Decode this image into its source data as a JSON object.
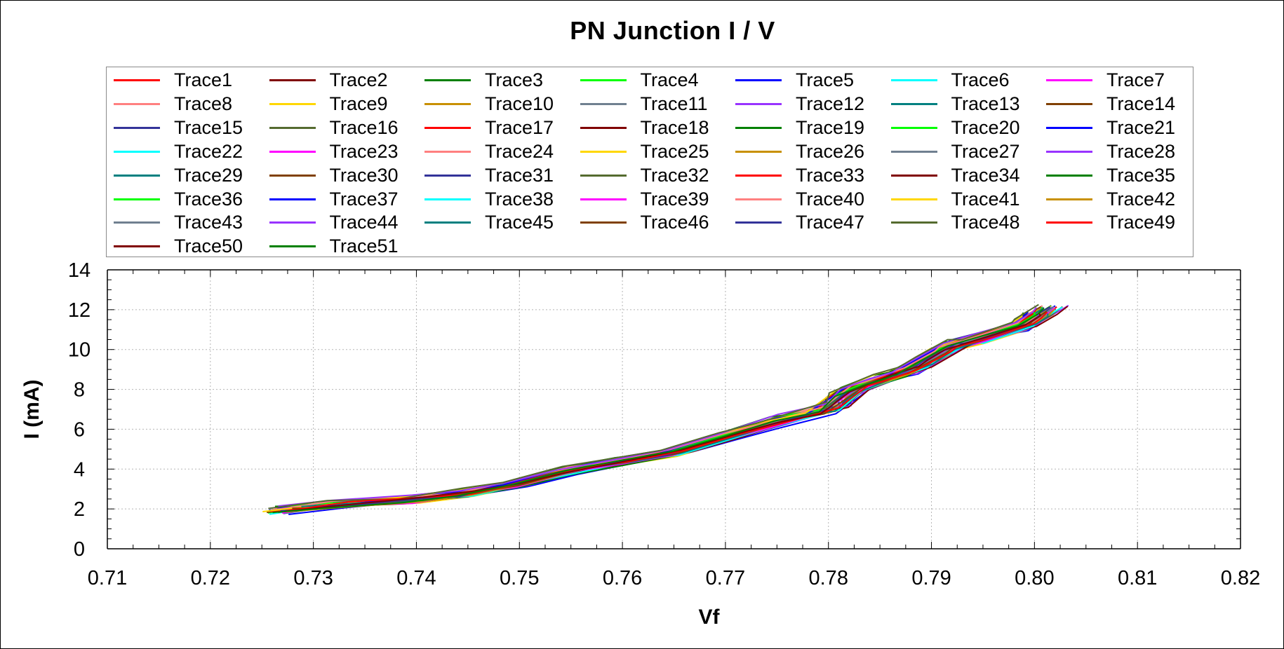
{
  "chart_data": {
    "type": "line",
    "title": "PN Junction I / V",
    "xlabel": "Vf",
    "ylabel": "I (mA)",
    "xlim": [
      0.71,
      0.82
    ],
    "ylim": [
      0,
      14
    ],
    "grid": true,
    "legend_placement": "top",
    "x_ticks": [
      "0.71",
      "0.72",
      "0.73",
      "0.74",
      "0.75",
      "0.76",
      "0.77",
      "0.78",
      "0.79",
      "0.80",
      "0.81",
      "0.82"
    ],
    "y_ticks": [
      "0",
      "2",
      "4",
      "6",
      "8",
      "10",
      "12",
      "14"
    ],
    "series_colors": [
      "#ff0000",
      "#800000",
      "#008000",
      "#00ff00",
      "#0000ff",
      "#00ffff",
      "#ff00ff",
      "#ff8080",
      "#ffd700",
      "#c89000",
      "#708090",
      "#9933ff",
      "#008080",
      "#804000",
      "#333399",
      "#556b2f"
    ],
    "base_curve": {
      "x": [
        0.727,
        0.732,
        0.74,
        0.745,
        0.75,
        0.755,
        0.76,
        0.765,
        0.77,
        0.775,
        0.78,
        0.782,
        0.785,
        0.788,
        0.79,
        0.792,
        0.795,
        0.798,
        0.8,
        0.801
      ],
      "y": [
        1.95,
        2.2,
        2.5,
        2.8,
        3.3,
        3.95,
        4.4,
        4.85,
        5.6,
        6.4,
        7.0,
        7.9,
        8.5,
        9.0,
        9.6,
        10.2,
        10.6,
        11.0,
        11.6,
        12.0
      ]
    },
    "series": [
      {
        "name": "Trace1"
      },
      {
        "name": "Trace2"
      },
      {
        "name": "Trace3"
      },
      {
        "name": "Trace4"
      },
      {
        "name": "Trace5"
      },
      {
        "name": "Trace6"
      },
      {
        "name": "Trace7"
      },
      {
        "name": "Trace8"
      },
      {
        "name": "Trace9"
      },
      {
        "name": "Trace10"
      },
      {
        "name": "Trace11"
      },
      {
        "name": "Trace12"
      },
      {
        "name": "Trace13"
      },
      {
        "name": "Trace14"
      },
      {
        "name": "Trace15"
      },
      {
        "name": "Trace16"
      },
      {
        "name": "Trace17"
      },
      {
        "name": "Trace18"
      },
      {
        "name": "Trace19"
      },
      {
        "name": "Trace20"
      },
      {
        "name": "Trace21"
      },
      {
        "name": "Trace22"
      },
      {
        "name": "Trace23"
      },
      {
        "name": "Trace24"
      },
      {
        "name": "Trace25"
      },
      {
        "name": "Trace26"
      },
      {
        "name": "Trace27"
      },
      {
        "name": "Trace28"
      },
      {
        "name": "Trace29"
      },
      {
        "name": "Trace30"
      },
      {
        "name": "Trace31"
      },
      {
        "name": "Trace32"
      },
      {
        "name": "Trace33"
      },
      {
        "name": "Trace34"
      },
      {
        "name": "Trace35"
      },
      {
        "name": "Trace36"
      },
      {
        "name": "Trace37"
      },
      {
        "name": "Trace38"
      },
      {
        "name": "Trace39"
      },
      {
        "name": "Trace40"
      },
      {
        "name": "Trace41"
      },
      {
        "name": "Trace42"
      },
      {
        "name": "Trace43"
      },
      {
        "name": "Trace44"
      },
      {
        "name": "Trace45"
      },
      {
        "name": "Trace46"
      },
      {
        "name": "Trace47"
      },
      {
        "name": "Trace48"
      },
      {
        "name": "Trace49"
      },
      {
        "name": "Trace50"
      },
      {
        "name": "Trace51"
      }
    ]
  }
}
